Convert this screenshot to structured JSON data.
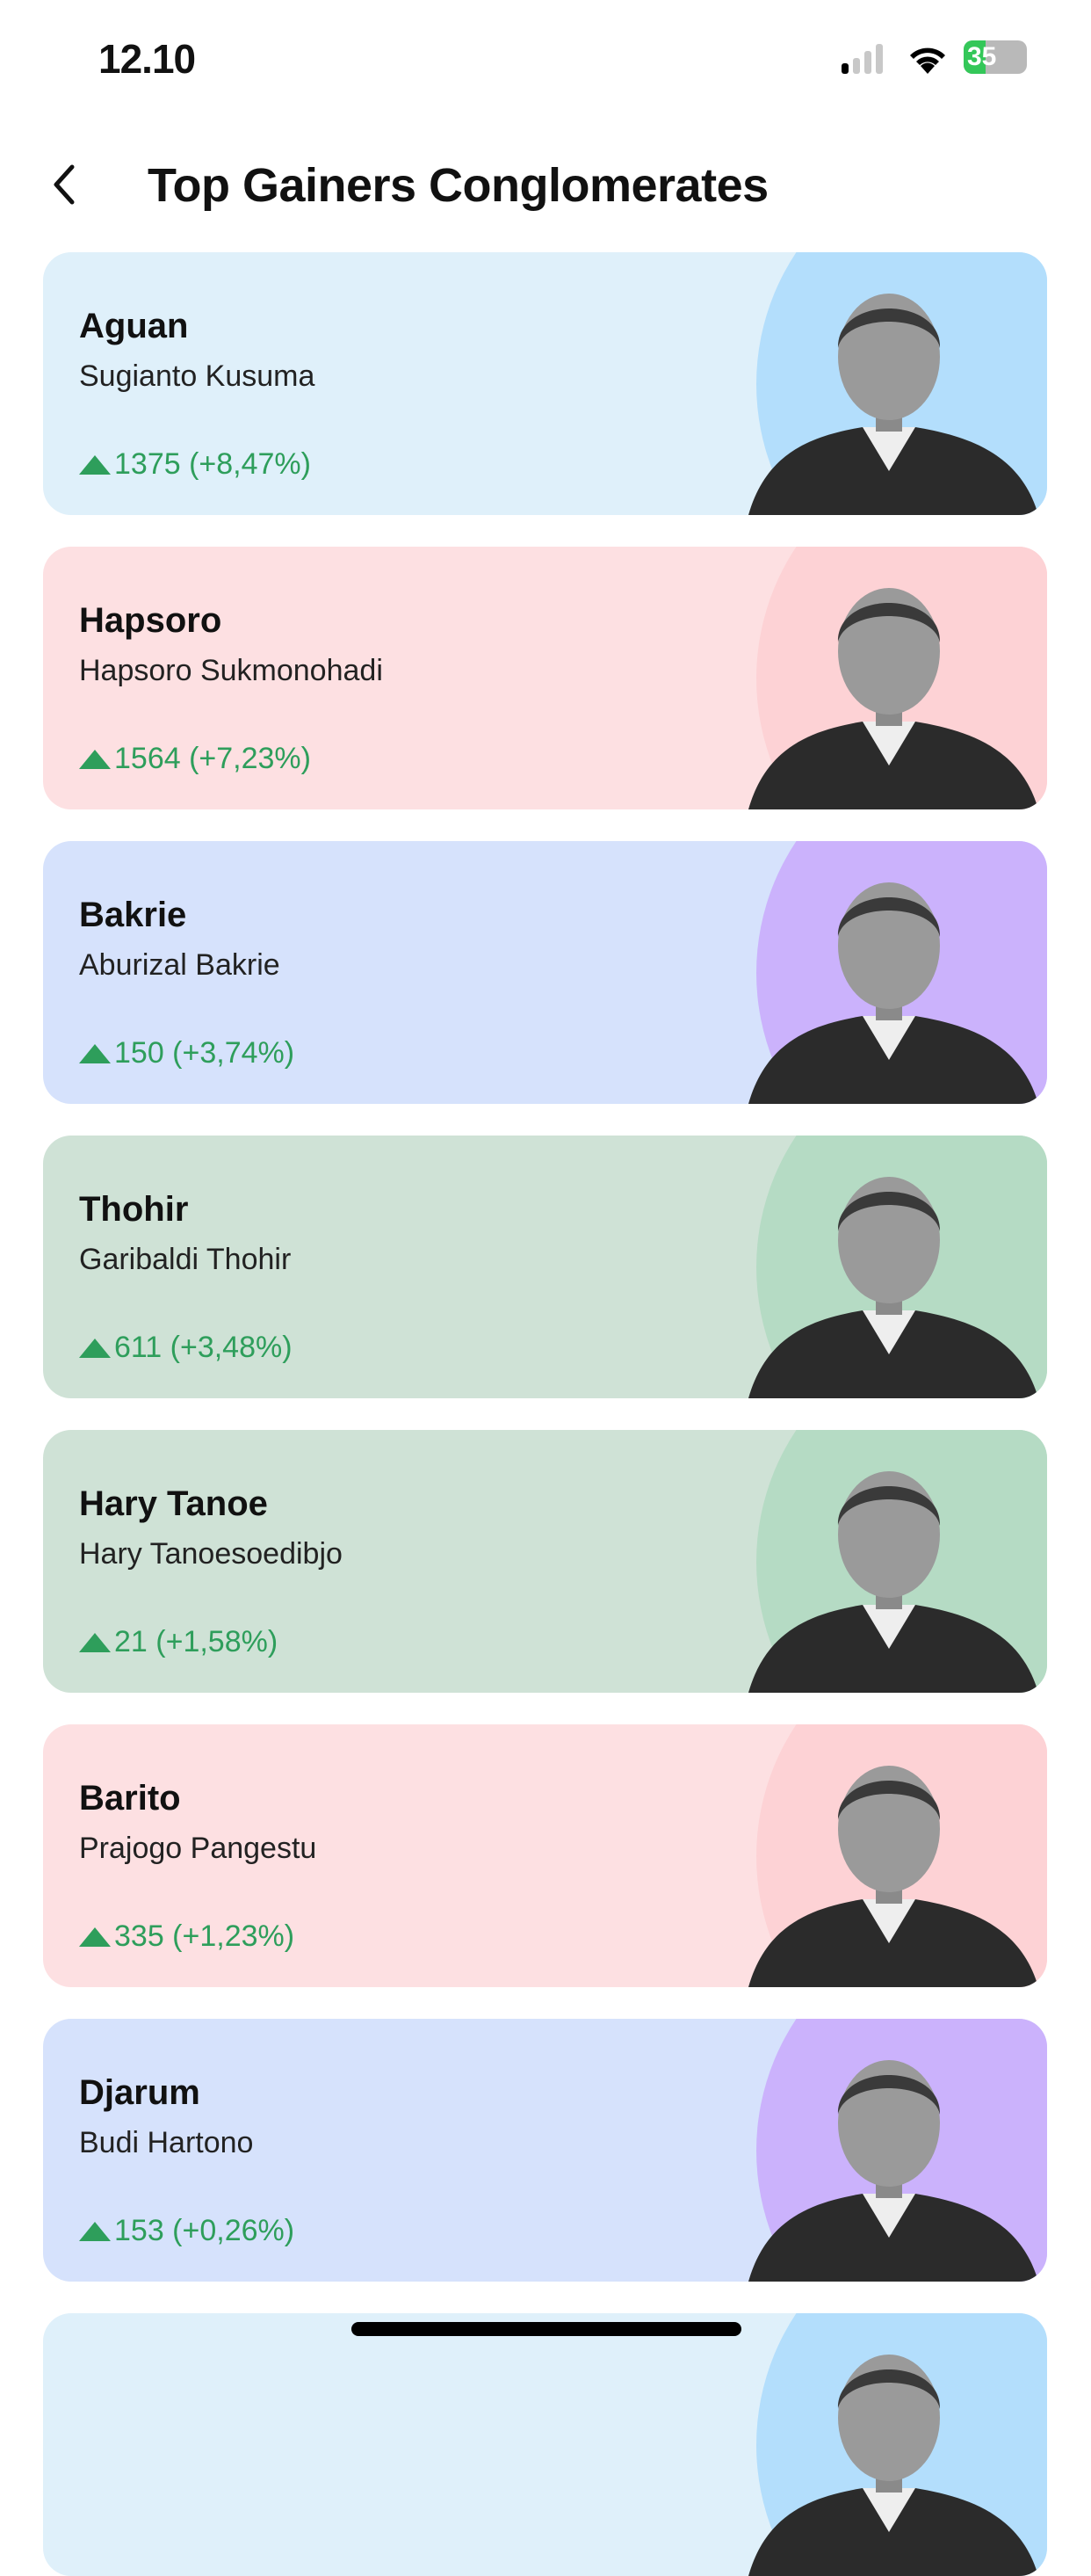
{
  "status_bar": {
    "time": "12.10",
    "battery": "35",
    "signal_bars": 1,
    "icons": [
      "signal-icon",
      "wifi-icon",
      "battery-charging-icon"
    ]
  },
  "header": {
    "title": "Top Gainers Conglomerates",
    "back_icon": "chevron-left-icon"
  },
  "colors": {
    "gain": "#2e9e5b"
  },
  "cards": [
    {
      "group": "Aguan",
      "owner": "Sugianto Kusuma",
      "change": "1375 (+8,47%)",
      "bg": "#dff0fa",
      "accent": "#b3defc"
    },
    {
      "group": "Hapsoro",
      "owner": "Hapsoro Sukmonohadi",
      "change": "1564 (+7,23%)",
      "bg": "#fde0e2",
      "accent": "#fdd2d5"
    },
    {
      "group": "Bakrie",
      "owner": "Aburizal Bakrie",
      "change": "150 (+3,74%)",
      "bg": "#d6e2fc",
      "accent": "#cbb2fc"
    },
    {
      "group": "Thohir",
      "owner": "Garibaldi Thohir",
      "change": "611 (+3,48%)",
      "bg": "#cfe2d6",
      "accent": "#b5dbc4"
    },
    {
      "group": "Hary Tanoe",
      "owner": "Hary Tanoesoedibjo",
      "change": "21 (+1,58%)",
      "bg": "#cfe2d6",
      "accent": "#b5dbc4"
    },
    {
      "group": "Barito",
      "owner": "Prajogo Pangestu",
      "change": "335 (+1,23%)",
      "bg": "#fde0e2",
      "accent": "#fdd2d5"
    },
    {
      "group": "Djarum",
      "owner": "Budi Hartono",
      "change": "153 (+0,26%)",
      "bg": "#d6e2fc",
      "accent": "#cbb2fc"
    },
    {
      "group": "",
      "owner": "",
      "change": "",
      "bg": "#dff0fa",
      "accent": "#b3defc"
    }
  ]
}
